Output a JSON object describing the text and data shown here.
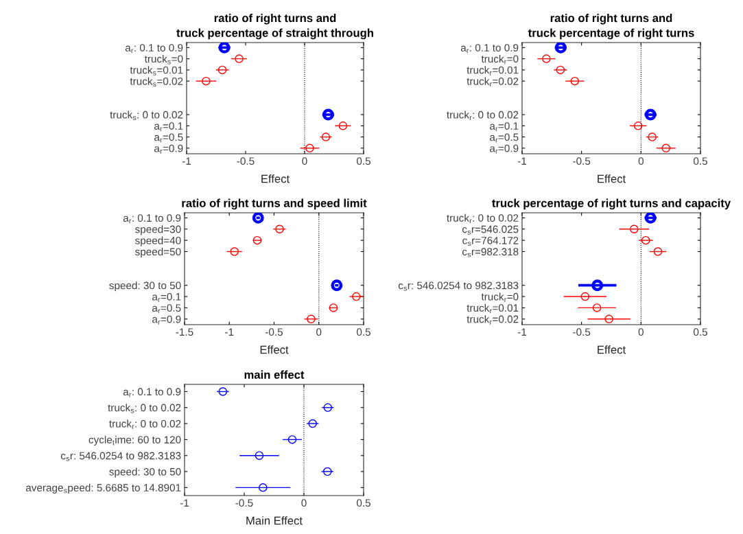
{
  "chart_data": [
    {
      "type": "scatter",
      "orientation": "horizontal",
      "title": "ratio of right turns and\ntruck percentage of straight through",
      "xlabel": "Effect",
      "categories": [
        "a$_{r}$: 0.1 to 0.9",
        "truck$_{s}$=0",
        "truck$_{s}$=0.01",
        "truck$_{s}$=0.02",
        null,
        null,
        "truck$_{s}$: 0 to 0.02",
        "a$_{r}$=0.1",
        "a$_{r}$=0.5",
        "a$_{r}$=0.9"
      ],
      "series": [
        {
          "color": "#0000ff",
          "values": [
            -0.68,
            null,
            null,
            null,
            null,
            null,
            0.2,
            null,
            null,
            null
          ],
          "errors": [
            0.05,
            null,
            null,
            null,
            null,
            null,
            0.05,
            null,
            null,
            null
          ]
        },
        {
          "color": "#ff0000",
          "values": [
            null,
            -0.555,
            -0.697,
            -0.835,
            null,
            null,
            null,
            0.325,
            0.18,
            0.043
          ],
          "errors": [
            null,
            0.066,
            0.055,
            0.085,
            null,
            null,
            null,
            0.067,
            0.05,
            0.08
          ]
        }
      ],
      "xlim": [
        -1,
        0.5
      ],
      "xticks": [
        -1,
        -0.5,
        0,
        0.5
      ],
      "ref_lines": [
        {
          "axis": "x",
          "value": 0,
          "color": "#000000",
          "line_style": "dotted"
        }
      ],
      "marker": "circle",
      "grid": false
    },
    {
      "type": "scatter",
      "orientation": "horizontal",
      "title": "ratio of right turns and\ntruck percentage of right turns",
      "xlabel": "Effect",
      "categories": [
        "a$_{r}$: 0.1 to 0.9",
        "truck$_{r}$=0",
        "truck$_{r}$=0.01",
        "truck$_{r}$=0.02",
        null,
        null,
        "truck$_{r}$: 0 to 0.02",
        "a$_{r}$=0.1",
        "a$_{r}$=0.5",
        "a$_{r}$=0.9"
      ],
      "series": [
        {
          "color": "#0000ff",
          "values": [
            -0.675,
            null,
            null,
            null,
            null,
            null,
            0.08,
            null,
            null,
            null
          ],
          "errors": [
            0.05,
            null,
            null,
            null,
            null,
            null,
            0.05,
            null,
            null,
            null
          ]
        },
        {
          "color": "#ff0000",
          "values": [
            null,
            -0.796,
            -0.678,
            -0.557,
            null,
            null,
            null,
            -0.024,
            0.094,
            0.21
          ],
          "errors": [
            null,
            0.075,
            0.055,
            0.078,
            null,
            null,
            null,
            0.07,
            0.05,
            0.08
          ]
        }
      ],
      "xlim": [
        -1,
        0.5
      ],
      "xticks": [
        -1,
        -0.5,
        0,
        0.5
      ],
      "ref_lines": [
        {
          "axis": "x",
          "value": 0,
          "color": "#000000",
          "line_style": "dotted"
        }
      ],
      "marker": "circle",
      "grid": false
    },
    {
      "type": "scatter",
      "orientation": "horizontal",
      "title": "ratio of right turns and speed limit",
      "xlabel": "Effect",
      "categories": [
        "a$_{r}$: 0.1 to 0.9",
        "speed=30",
        "speed=40",
        "speed=50",
        null,
        null,
        "speed: 30 to 50",
        "a$_{r}$=0.1",
        "a$_{r}$=0.5",
        "a$_{r}$=0.9"
      ],
      "series": [
        {
          "color": "#0000ff",
          "values": [
            -0.678,
            null,
            null,
            null,
            null,
            null,
            0.2,
            null,
            null,
            null
          ],
          "errors": [
            0.02,
            null,
            null,
            null,
            null,
            null,
            0.02,
            null,
            null,
            null
          ]
        },
        {
          "color": "#ff0000",
          "values": [
            null,
            -0.439,
            -0.688,
            -0.943,
            null,
            null,
            null,
            0.418,
            0.163,
            -0.087
          ],
          "errors": [
            null,
            0.07,
            0.05,
            0.085,
            null,
            null,
            null,
            0.075,
            0.05,
            0.075
          ]
        }
      ],
      "xlim": [
        -1.5,
        0.5
      ],
      "xticks": [
        -1.5,
        -1,
        -0.5,
        0,
        0.5
      ],
      "ref_lines": [
        {
          "axis": "x",
          "value": 0,
          "color": "#000000",
          "line_style": "dotted"
        }
      ],
      "marker": "circle",
      "grid": false
    },
    {
      "type": "scatter",
      "orientation": "horizontal",
      "title": "truck percentage of right turns and capacity",
      "xlabel": "Effect",
      "categories": [
        "truck$_{r}$: 0 to 0.02",
        "c$_{s}$r=546.025",
        "c$_{s}$r=764.172",
        "c$_{s}$r=982.318",
        null,
        null,
        "c$_{s}$r: 546.0254 to 982.3183",
        "truck$_{r}$=0",
        "truck$_{r}$=0.01",
        "truck$_{r}$=0.02"
      ],
      "series": [
        {
          "color": "#0000ff",
          "values": [
            0.08,
            null,
            null,
            null,
            null,
            null,
            -0.367,
            null,
            null,
            null
          ],
          "errors": [
            0.05,
            null,
            null,
            null,
            null,
            null,
            0.16,
            null,
            null,
            null
          ]
        },
        {
          "color": "#ff0000",
          "values": [
            null,
            -0.058,
            0.04,
            0.142,
            null,
            null,
            null,
            -0.47,
            -0.371,
            -0.269
          ],
          "errors": [
            null,
            0.125,
            0.06,
            0.07,
            null,
            null,
            null,
            0.18,
            0.16,
            0.18
          ]
        }
      ],
      "xlim": [
        -1,
        0.5
      ],
      "xticks": [
        -1,
        -0.5,
        0,
        0.5
      ],
      "ref_lines": [
        {
          "axis": "x",
          "value": 0,
          "color": "#000000",
          "line_style": "dotted"
        }
      ],
      "marker": "circle",
      "grid": false
    },
    {
      "type": "scatter",
      "orientation": "horizontal",
      "title": "main effect",
      "xlabel": "Main Effect",
      "categories": [
        "a$_{r}$: 0.1 to 0.9",
        "truck$_{s}$: 0 to 0.02",
        "truck$_{r}$: 0 to 0.02",
        "cycle$_{t}$ime: 60 to 120",
        "c$_{s}$r: 546.0254 to 982.3183",
        "speed: 30 to 50",
        "average$_{s}$peed: 5.6685 to 14.8901"
      ],
      "series": [
        {
          "color": "#0000ff",
          "values": [
            -0.679,
            0.2,
            0.073,
            -0.098,
            -0.374,
            0.197,
            -0.343
          ],
          "errors": [
            0.05,
            0.05,
            0.05,
            0.08,
            0.165,
            0.05,
            0.23
          ]
        }
      ],
      "xlim": [
        -1,
        0.5
      ],
      "xticks": [
        -1,
        -0.5,
        0,
        0.5
      ],
      "ref_lines": [
        {
          "axis": "x",
          "value": 0,
          "color": "#000000",
          "line_style": "dotted"
        }
      ],
      "marker": "circle",
      "grid": false
    }
  ]
}
